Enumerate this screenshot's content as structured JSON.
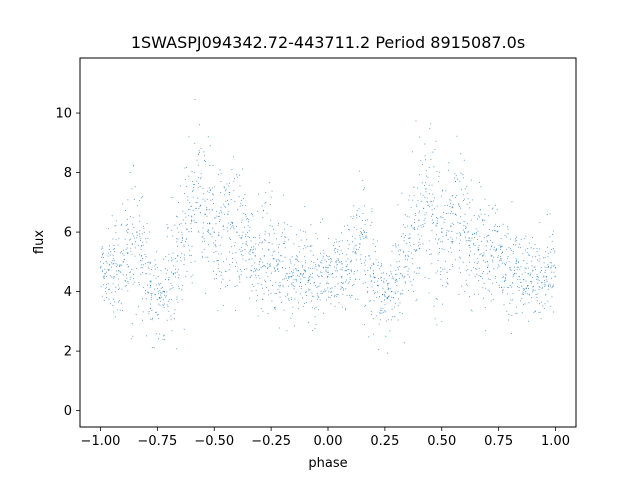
{
  "chart_data": {
    "type": "scatter",
    "title": "1SWASPJ094342.72-443711.2 Period 8915087.0s",
    "xlabel": "phase",
    "ylabel": "flux",
    "xlim": [
      -1.09,
      1.09
    ],
    "ylim": [
      -0.55,
      11.85
    ],
    "xticks": [
      -1.0,
      -0.75,
      -0.5,
      -0.25,
      0.0,
      0.25,
      0.5,
      0.75,
      1.0
    ],
    "xtick_labels": [
      "−1.00",
      "−0.75",
      "−0.50",
      "−0.25",
      "0.00",
      "0.25",
      "0.50",
      "0.75",
      "1.00"
    ],
    "yticks": [
      0,
      2,
      4,
      6,
      8,
      10
    ],
    "ytick_labels": [
      "0",
      "2",
      "4",
      "6",
      "8",
      "10"
    ],
    "grid": false,
    "legend": "none",
    "point_color": "#1f77b4",
    "series": [
      {
        "x": [
          -1.0,
          -0.98,
          -0.96,
          -0.94,
          -0.92,
          -0.9,
          -0.88,
          -0.86,
          -0.84,
          -0.82,
          -0.8,
          -0.78,
          -0.76,
          -0.74,
          -0.72,
          -0.7,
          -0.68,
          -0.66,
          -0.64,
          -0.62,
          -0.6,
          -0.58,
          -0.56,
          -0.54,
          -0.52,
          -0.5,
          -0.48,
          -0.46,
          -0.44,
          -0.42,
          -0.4,
          -0.38,
          -0.36,
          -0.34,
          -0.32,
          -0.3,
          -0.28,
          -0.26,
          -0.24,
          -0.22,
          -0.2,
          -0.18,
          -0.16,
          -0.14,
          -0.12,
          -0.1,
          -0.08,
          -0.06,
          -0.04,
          -0.02,
          0.0,
          0.02,
          0.04,
          0.06,
          0.08,
          0.1,
          0.12,
          0.14,
          0.16,
          0.18,
          0.2,
          0.22,
          0.24,
          0.26,
          0.28,
          0.3,
          0.32,
          0.34,
          0.36,
          0.38,
          0.4,
          0.42,
          0.44,
          0.46,
          0.48,
          0.5,
          0.52,
          0.54,
          0.56,
          0.58,
          0.6,
          0.62,
          0.64,
          0.66,
          0.68,
          0.7,
          0.72,
          0.74,
          0.76,
          0.78,
          0.8,
          0.82,
          0.84,
          0.86,
          0.88,
          0.9,
          0.92,
          0.94,
          0.96,
          0.98,
          1.0
        ],
        "y": [
          4.8,
          4.6,
          4.9,
          4.5,
          4.7,
          5.0,
          5.3,
          5.6,
          6.0,
          5.2,
          4.6,
          4.2,
          3.9,
          3.8,
          4.0,
          4.4,
          4.6,
          5.2,
          5.8,
          6.1,
          6.4,
          6.8,
          6.9,
          6.6,
          6.3,
          6.0,
          5.9,
          6.2,
          6.6,
          6.3,
          6.0,
          5.8,
          5.6,
          5.4,
          5.2,
          5.0,
          5.2,
          5.4,
          5.1,
          4.9,
          4.8,
          4.6,
          4.5,
          4.4,
          4.6,
          4.7,
          4.5,
          4.3,
          4.5,
          4.8,
          4.8,
          4.6,
          4.9,
          4.5,
          4.7,
          5.0,
          5.3,
          5.6,
          6.0,
          5.2,
          4.6,
          4.2,
          3.9,
          3.8,
          4.0,
          4.4,
          4.6,
          5.2,
          5.8,
          6.1,
          6.4,
          6.8,
          6.9,
          6.6,
          6.3,
          6.0,
          5.9,
          6.2,
          6.6,
          6.3,
          6.0,
          5.8,
          5.6,
          5.4,
          5.2,
          5.0,
          5.2,
          5.4,
          5.1,
          4.9,
          4.8,
          4.6,
          4.5,
          4.4,
          4.6,
          4.7,
          4.5,
          4.3,
          4.5,
          4.8,
          4.8
        ],
        "spread": [
          0.55,
          0.55,
          0.6,
          0.6,
          0.7,
          0.8,
          0.9,
          1.0,
          1.3,
          1.0,
          0.8,
          0.7,
          0.6,
          0.6,
          0.7,
          0.8,
          0.9,
          1.0,
          1.1,
          1.1,
          1.2,
          1.2,
          1.2,
          1.1,
          1.1,
          1.0,
          1.0,
          1.1,
          1.2,
          1.1,
          1.0,
          0.9,
          0.9,
          0.9,
          0.8,
          0.8,
          0.8,
          0.9,
          0.8,
          0.8,
          0.8,
          0.7,
          0.7,
          0.7,
          0.7,
          0.7,
          0.7,
          0.7,
          0.7,
          0.6,
          0.55,
          0.55,
          0.6,
          0.6,
          0.7,
          0.8,
          0.9,
          1.0,
          1.3,
          1.0,
          0.8,
          0.7,
          0.6,
          0.6,
          0.7,
          0.8,
          0.9,
          1.0,
          1.1,
          1.1,
          1.2,
          1.2,
          1.2,
          1.1,
          1.1,
          1.0,
          1.0,
          1.1,
          1.2,
          1.1,
          1.0,
          0.9,
          0.9,
          0.9,
          0.8,
          0.8,
          0.8,
          0.9,
          0.8,
          0.8,
          0.8,
          0.7,
          0.7,
          0.7,
          0.7,
          0.7,
          0.7,
          0.7,
          0.7,
          0.6,
          0.55
        ]
      }
    ]
  }
}
